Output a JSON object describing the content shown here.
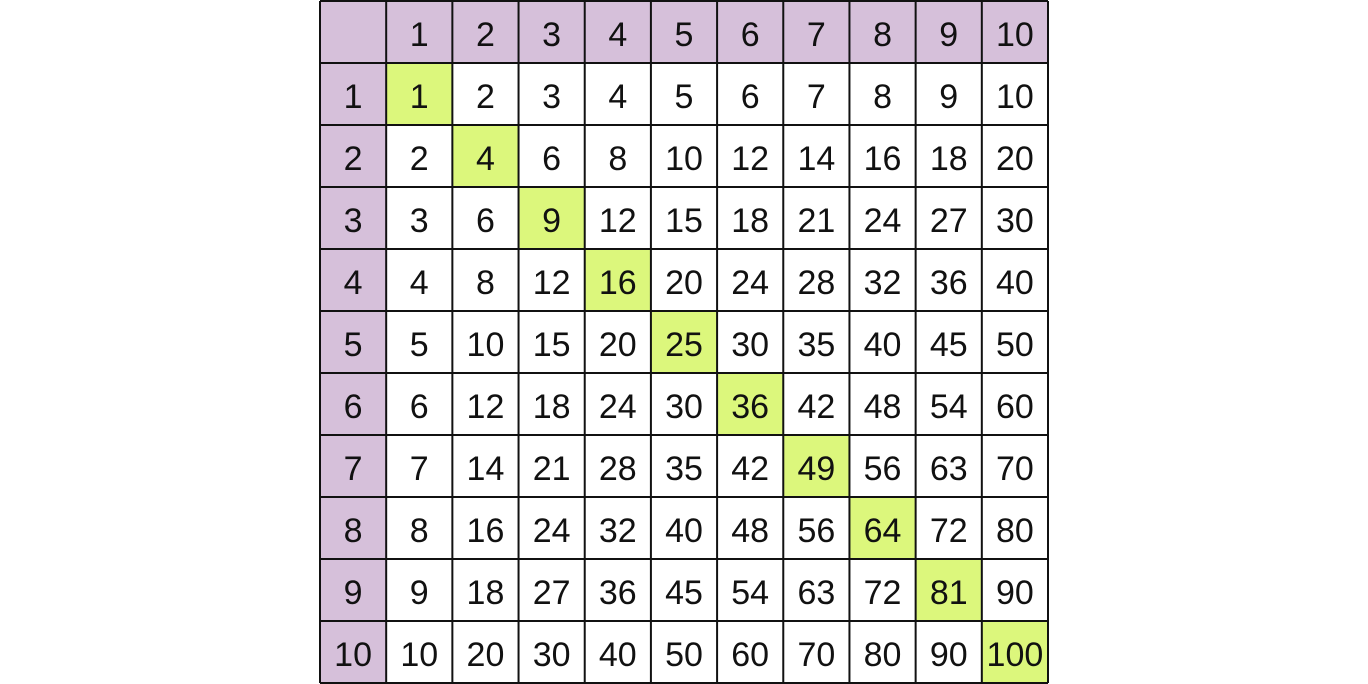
{
  "table": {
    "header": [
      1,
      2,
      3,
      4,
      5,
      6,
      7,
      8,
      9,
      10
    ],
    "rows": [
      {
        "label": 1,
        "cells": [
          1,
          2,
          3,
          4,
          5,
          6,
          7,
          8,
          9,
          10
        ]
      },
      {
        "label": 2,
        "cells": [
          2,
          4,
          6,
          8,
          10,
          12,
          14,
          16,
          18,
          20
        ]
      },
      {
        "label": 3,
        "cells": [
          3,
          6,
          9,
          12,
          15,
          18,
          21,
          24,
          27,
          30
        ]
      },
      {
        "label": 4,
        "cells": [
          4,
          8,
          12,
          16,
          20,
          24,
          28,
          32,
          36,
          40
        ]
      },
      {
        "label": 5,
        "cells": [
          5,
          10,
          15,
          20,
          25,
          30,
          35,
          40,
          45,
          50
        ]
      },
      {
        "label": 6,
        "cells": [
          6,
          12,
          18,
          24,
          30,
          36,
          42,
          48,
          54,
          60
        ]
      },
      {
        "label": 7,
        "cells": [
          7,
          14,
          21,
          28,
          35,
          42,
          49,
          56,
          63,
          70
        ]
      },
      {
        "label": 8,
        "cells": [
          8,
          16,
          24,
          32,
          40,
          48,
          56,
          64,
          72,
          80
        ]
      },
      {
        "label": 9,
        "cells": [
          9,
          18,
          27,
          36,
          45,
          54,
          63,
          72,
          81,
          90
        ]
      },
      {
        "label": 10,
        "cells": [
          10,
          20,
          30,
          40,
          50,
          60,
          70,
          80,
          90,
          100
        ]
      }
    ]
  }
}
